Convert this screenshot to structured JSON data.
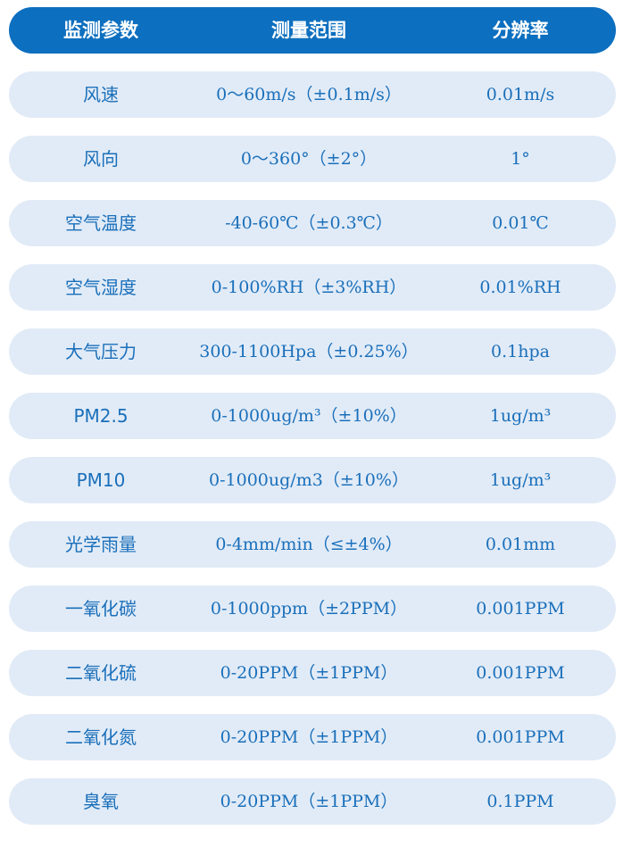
{
  "header": {
    "param": "监测参数",
    "range": "测量范围",
    "resolution": "分辨率"
  },
  "colors": {
    "header_bg": "#0d6fbf",
    "row_bg": "#e1ebf7",
    "text": "#1a6fba"
  },
  "rows": [
    {
      "param": "风速",
      "range": "0～60m/s（±0.1m/s）",
      "resolution": "0.01m/s"
    },
    {
      "param": "风向",
      "range": "0～360°（±2°）",
      "resolution": "1°"
    },
    {
      "param": "空气温度",
      "range": "-40-60℃（±0.3℃）",
      "resolution": "0.01℃"
    },
    {
      "param": "空气湿度",
      "range": "0-100%RH（±3%RH）",
      "resolution": "0.01%RH"
    },
    {
      "param": "大气压力",
      "range": "300-1100Hpa（±0.25%）",
      "resolution": "0.1hpa"
    },
    {
      "param": "PM2.5",
      "range": "0-1000ug/m³（±10%）",
      "resolution": "1ug/m³"
    },
    {
      "param": "PM10",
      "range": "0-1000ug/m3（±10%）",
      "resolution": "1ug/m³"
    },
    {
      "param": "光学雨量",
      "range": "0-4mm/min（≤±4%）",
      "resolution": "0.01mm"
    },
    {
      "param": "一氧化碳",
      "range": "0-1000ppm（±2PPM）",
      "resolution": "0.001PPM"
    },
    {
      "param": "二氧化硫",
      "range": "0-20PPM（±1PPM）",
      "resolution": "0.001PPM"
    },
    {
      "param": "二氧化氮",
      "range": "0-20PPM（±1PPM）",
      "resolution": "0.001PPM"
    },
    {
      "param": "臭氧",
      "range": "0-20PPM（±1PPM）",
      "resolution": "0.1PPM"
    }
  ]
}
